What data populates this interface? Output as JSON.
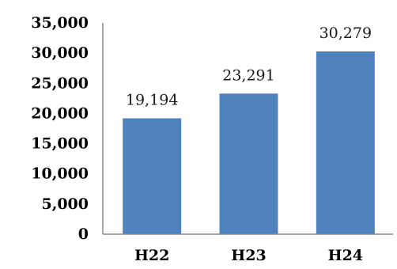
{
  "chart_data": {
    "type": "bar",
    "categories": [
      "H22",
      "H23",
      "H24"
    ],
    "values": [
      19194,
      23291,
      30279
    ],
    "data_labels": [
      "19,194",
      "23,291",
      "30,279"
    ],
    "y_ticks": [
      "0",
      "5,000",
      "10,000",
      "15,000",
      "20,000",
      "25,000",
      "30,000",
      "35,000"
    ],
    "ylim": [
      0,
      35000
    ],
    "grid": false,
    "legend": "none",
    "bar_color": "#4f81bd"
  }
}
